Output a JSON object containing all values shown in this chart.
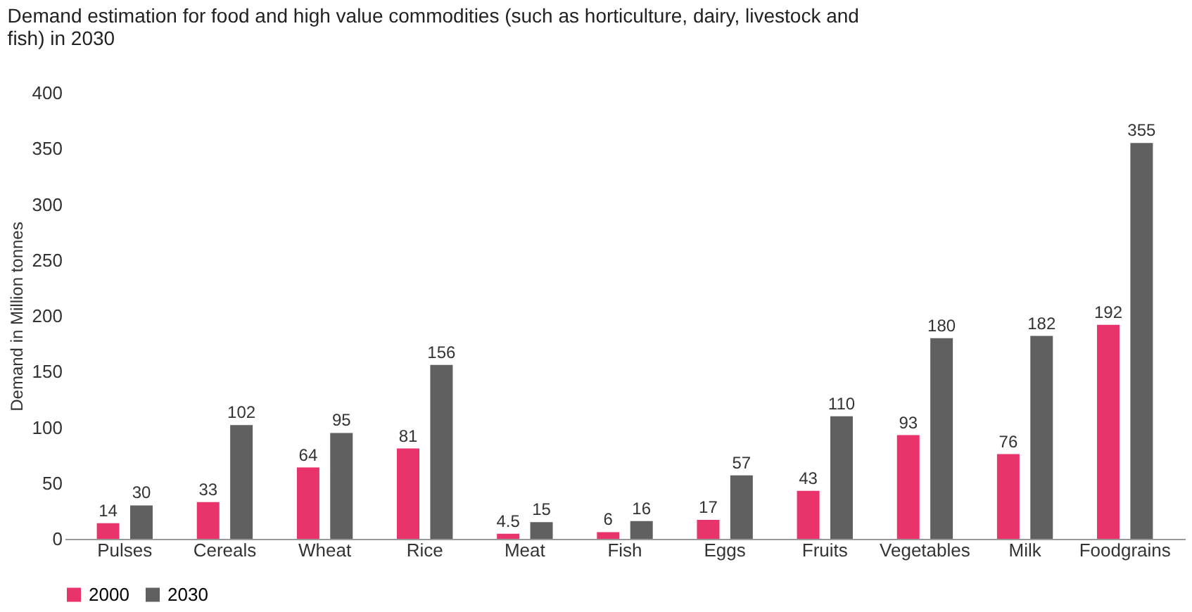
{
  "chart_data": {
    "type": "bar",
    "title": "Demand estimation for food and high value commodities (such as horticulture, dairy, livestock and fish) in 2030",
    "ylabel": "Demand in Million tonnes",
    "categories": [
      "Pulses",
      "Cereals",
      "Wheat",
      "Rice",
      "Meat",
      "Fish",
      "Eggs",
      "Fruits",
      "Vegetables",
      "Milk",
      "Foodgrains"
    ],
    "series": [
      {
        "name": "2000",
        "color": "#e8336b",
        "values": [
          14,
          33,
          64,
          81,
          4.5,
          6,
          17,
          43,
          93,
          76,
          192
        ]
      },
      {
        "name": "2030",
        "color": "#606060",
        "values": [
          30,
          102,
          95,
          156,
          15,
          16,
          57,
          110,
          180,
          182,
          355
        ]
      }
    ],
    "ylim": [
      0,
      400
    ],
    "yticks": [
      0,
      50,
      100,
      150,
      200,
      250,
      300,
      350,
      400
    ],
    "grid": false,
    "legend": "bottom",
    "data_labels": true
  }
}
